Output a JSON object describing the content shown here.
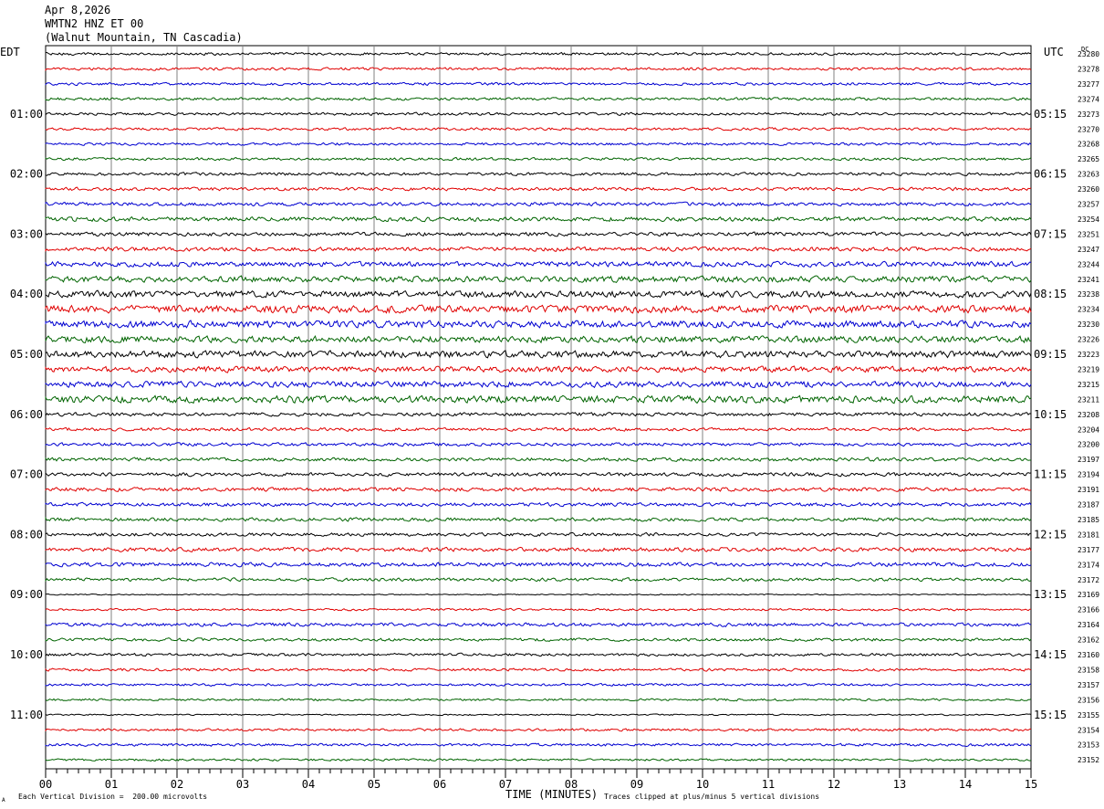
{
  "header": {
    "date": "Apr 8,2026",
    "station": "WMTN2 HNZ ET 00",
    "location": "(Walnut Mountain, TN Cascadia)"
  },
  "left_tz": "EDT",
  "right_tz": "UTC",
  "dc_label": "DC",
  "footer": {
    "scale_note": "Each Vertical Division =  200.00 microvolts",
    "x_axis_title": "TIME (MINUTES)",
    "clip_note": "Traces clipped at plus/minus 5 vertical divisions",
    "corner_mark": "A"
  },
  "colors": {
    "trace_cycle": [
      "#000000",
      "#e00000",
      "#0000d0",
      "#006400"
    ],
    "grid": "#808080"
  },
  "chart_data": {
    "type": "line",
    "title": "WMTN2 HNZ ET 00",
    "xlabel": "TIME (MINUTES)",
    "ylabel": "",
    "xlim": [
      0,
      15
    ],
    "x_ticks": [
      "00",
      "01",
      "02",
      "03",
      "04",
      "05",
      "06",
      "07",
      "08",
      "09",
      "10",
      "11",
      "12",
      "13",
      "14",
      "15"
    ],
    "left_hour_labels": [
      "01:00",
      "02:00",
      "03:00",
      "04:00",
      "05:00",
      "06:00",
      "07:00",
      "08:00",
      "09:00",
      "10:00",
      "11:00"
    ],
    "right_hour_labels": [
      "05:15",
      "06:15",
      "07:15",
      "08:15",
      "09:15",
      "10:15",
      "11:15",
      "12:15",
      "13:15",
      "14:15",
      "15:15"
    ],
    "trace_dc_offsets": [
      23280,
      23278,
      23277,
      23274,
      23273,
      23270,
      23268,
      23265,
      23263,
      23260,
      23257,
      23254,
      23251,
      23247,
      23244,
      23241,
      23238,
      23234,
      23230,
      23226,
      23223,
      23219,
      23215,
      23211,
      23208,
      23204,
      23200,
      23197,
      23194,
      23191,
      23187,
      23185,
      23181,
      23177,
      23174,
      23172,
      23169,
      23166,
      23164,
      23162,
      23160,
      23158,
      23157,
      23156,
      23155,
      23154,
      23153,
      23152
    ],
    "trace_activity": [
      1,
      1,
      1,
      1,
      1,
      1,
      1,
      1,
      1.1,
      1.2,
      1.3,
      1.6,
      1.4,
      1.5,
      1.9,
      2.2,
      2.4,
      2.8,
      2.6,
      2.4,
      2.5,
      2.1,
      2.2,
      2.6,
      1.3,
      1.2,
      1.2,
      1.3,
      1.3,
      1.4,
      1.3,
      1.3,
      1.2,
      1.5,
      1.5,
      1.2,
      0.4,
      0.8,
      1.3,
      1.1,
      1.0,
      1.0,
      0.9,
      0.8,
      0.5,
      0.9,
      1.0,
      0.8
    ],
    "grid": true
  }
}
